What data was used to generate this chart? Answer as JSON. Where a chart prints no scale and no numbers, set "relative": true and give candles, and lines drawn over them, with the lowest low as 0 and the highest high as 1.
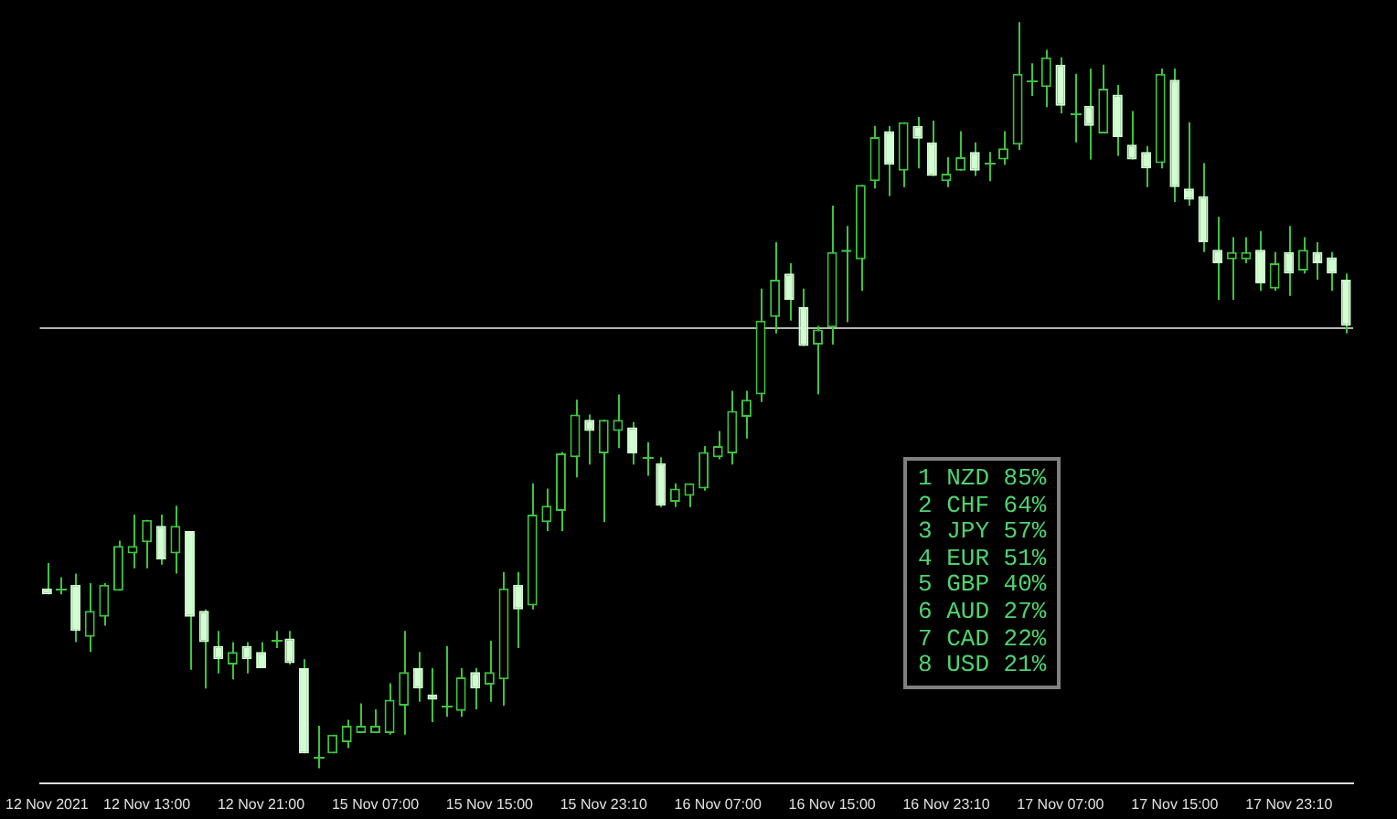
{
  "chart_data": {
    "type": "candlestick",
    "relative": true,
    "color": "#3ec43e",
    "grid": false,
    "colors": [
      "#d2ffd2",
      "#3ec43e",
      "#d2ffd2",
      "#3ec43e",
      "#3ec43e",
      "#3ec43e",
      "#3ec43e",
      "#3ec43e",
      "#d2ffd2",
      "#3ec43e",
      "#d2ffd2",
      "#d2ffd2",
      "#d2ffd2",
      "#3ec43e",
      "#d2ffd2",
      "#d2ffd2",
      "#3ec43e",
      "#d2ffd2",
      "#d2ffd2",
      "#3ec43e",
      "#3ec43e",
      "#3ec43e",
      "#3ec43e",
      "#3ec43e",
      "#3ec43e",
      "#3ec43e",
      "#d2ffd2",
      "#d2ffd2",
      "#3ec43e",
      "#3ec43e",
      "#d2ffd2",
      "#3ec43e",
      "#3ec43e",
      "#d2ffd2",
      "#3ec43e",
      "#3ec43e",
      "#3ec43e",
      "#3ec43e",
      "#d2ffd2",
      "#3ec43e",
      "#3ec43e",
      "#d2ffd2",
      "#3ec43e",
      "#d2ffd2",
      "#3ec43e",
      "#3ec43e",
      "#3ec43e",
      "#3ec43e",
      "#3ec43e",
      "#3ec43e",
      "#3ec43e",
      "#3ec43e",
      "#d2ffd2",
      "#d2ffd2",
      "#3ec43e",
      "#3ec43e",
      "#3ec43e",
      "#3ec43e",
      "#3ec43e",
      "#d2ffd2",
      "#3ec43e",
      "#d2ffd2",
      "#d2ffd2",
      "#3ec43e",
      "#3ec43e",
      "#d2ffd2",
      "#3ec43e",
      "#3ec43e",
      "#3ec43e",
      "#3ec43e",
      "#3ec43e",
      "#d2ffd2",
      "#3ec43e",
      "#d2ffd2",
      "#3ec43e",
      "#d2ffd2",
      "#d2ffd2",
      "#d2ffd2",
      "#3ec43e",
      "#d2ffd2",
      "#d2ffd2",
      "#d2ffd2",
      "#d2ffd2",
      "#3ec43e",
      "#3ec43e",
      "#d2ffd2",
      "#3ec43e",
      "#d2ffd2",
      "#3ec43e",
      "#d2ffd2",
      "#d2ffd2",
      "#d2ffd2"
    ],
    "legend": false,
    "categories": [
      "12 Nov 2021",
      null,
      null,
      null,
      null,
      null,
      null,
      "12 Nov 13:00",
      null,
      null,
      null,
      null,
      null,
      null,
      null,
      "12 Nov 21:00",
      null,
      null,
      null,
      null,
      null,
      null,
      null,
      "15 Nov 07:00",
      null,
      null,
      null,
      null,
      null,
      null,
      null,
      "15 Nov 15:00",
      null,
      null,
      null,
      null,
      null,
      null,
      null,
      "15 Nov 23:10",
      null,
      null,
      null,
      null,
      null,
      null,
      null,
      "16 Nov 07:00",
      null,
      null,
      null,
      null,
      null,
      null,
      null,
      "16 Nov 15:00",
      null,
      null,
      null,
      null,
      null,
      null,
      null,
      "16 Nov 23:10",
      null,
      null,
      null,
      null,
      null,
      null,
      null,
      "17 Nov 07:00",
      null,
      null,
      null,
      null,
      null,
      null,
      null,
      "17 Nov 15:00",
      null,
      null,
      null,
      null,
      null,
      null,
      null,
      "17 Nov 23:10",
      null,
      null,
      null,
      null
    ],
    "ohlc": [
      [
        0.241,
        0.275,
        0.233,
        0.233
      ],
      [
        0.241,
        0.256,
        0.233,
        0.241
      ],
      [
        0.246,
        0.261,
        0.169,
        0.184
      ],
      [
        0.176,
        0.248,
        0.156,
        0.211
      ],
      [
        0.203,
        0.248,
        0.191,
        0.246
      ],
      [
        0.238,
        0.305,
        0.238,
        0.298
      ],
      [
        0.288,
        0.34,
        0.268,
        0.298
      ],
      [
        0.303,
        0.333,
        0.268,
        0.333
      ],
      [
        0.325,
        0.34,
        0.273,
        0.28
      ],
      [
        0.288,
        0.352,
        0.261,
        0.325
      ],
      [
        0.318,
        0.318,
        0.132,
        0.203
      ],
      [
        0.211,
        0.213,
        0.107,
        0.169
      ],
      [
        0.164,
        0.184,
        0.127,
        0.146
      ],
      [
        0.139,
        0.169,
        0.119,
        0.156
      ],
      [
        0.164,
        0.169,
        0.127,
        0.146
      ],
      [
        0.156,
        0.169,
        0.134,
        0.134
      ],
      [
        0.171,
        0.184,
        0.161,
        0.171
      ],
      [
        0.174,
        0.184,
        0.139,
        0.141
      ],
      [
        0.134,
        0.146,
        0.02,
        0.02
      ],
      [
        0.015,
        0.057,
        0,
        0.015
      ],
      [
        0.02,
        0.045,
        0.02,
        0.045
      ],
      [
        0.035,
        0.065,
        0.027,
        0.057
      ],
      [
        0.047,
        0.087,
        0.047,
        0.057
      ],
      [
        0.047,
        0.079,
        0.047,
        0.057
      ],
      [
        0.047,
        0.114,
        0.045,
        0.092
      ],
      [
        0.084,
        0.184,
        0.045,
        0.129
      ],
      [
        0.134,
        0.156,
        0.089,
        0.107
      ],
      [
        0.099,
        0.134,
        0.062,
        0.092
      ],
      [
        0.084,
        0.164,
        0.069,
        0.084
      ],
      [
        0.077,
        0.134,
        0.069,
        0.122
      ],
      [
        0.129,
        0.134,
        0.079,
        0.107
      ],
      [
        0.112,
        0.171,
        0.089,
        0.129
      ],
      [
        0.119,
        0.263,
        0.084,
        0.241
      ],
      [
        0.246,
        0.263,
        0.161,
        0.213
      ],
      [
        0.218,
        0.382,
        0.213,
        0.34
      ],
      [
        0.33,
        0.375,
        0.318,
        0.352
      ],
      [
        0.345,
        0.424,
        0.318,
        0.422
      ],
      [
        0.417,
        0.494,
        0.39,
        0.474
      ],
      [
        0.467,
        0.474,
        0.407,
        0.452
      ],
      [
        0.422,
        0.467,
        0.33,
        0.467
      ],
      [
        0.452,
        0.501,
        0.429,
        0.467
      ],
      [
        0.457,
        0.464,
        0.407,
        0.422
      ],
      [
        0.417,
        0.437,
        0.392,
        0.417
      ],
      [
        0.409,
        0.417,
        0.35,
        0.352
      ],
      [
        0.357,
        0.382,
        0.35,
        0.375
      ],
      [
        0.365,
        0.382,
        0.35,
        0.382
      ],
      [
        0.375,
        0.432,
        0.372,
        0.424
      ],
      [
        0.417,
        0.452,
        0.414,
        0.432
      ],
      [
        0.422,
        0.506,
        0.407,
        0.479
      ],
      [
        0.471,
        0.506,
        0.442,
        0.494
      ],
      [
        0.501,
        0.643,
        0.491,
        0.6
      ],
      [
        0.605,
        0.705,
        0.583,
        0.655
      ],
      [
        0.663,
        0.677,
        0.6,
        0.628
      ],
      [
        0.618,
        0.643,
        0.566,
        0.566
      ],
      [
        0.568,
        0.593,
        0.501,
        0.588
      ],
      [
        0.591,
        0.754,
        0.568,
        0.692
      ],
      [
        0.692,
        0.727,
        0.598,
        0.695
      ],
      [
        0.682,
        0.782,
        0.64,
        0.782
      ],
      [
        0.787,
        0.861,
        0.777,
        0.846
      ],
      [
        0.854,
        0.861,
        0.767,
        0.809
      ],
      [
        0.801,
        0.866,
        0.779,
        0.866
      ],
      [
        0.861,
        0.873,
        0.804,
        0.844
      ],
      [
        0.839,
        0.868,
        0.794,
        0.794
      ],
      [
        0.787,
        0.819,
        0.779,
        0.797
      ],
      [
        0.801,
        0.854,
        0.801,
        0.819
      ],
      [
        0.826,
        0.839,
        0.794,
        0.801
      ],
      [
        0.811,
        0.826,
        0.787,
        0.811
      ],
      [
        0.816,
        0.854,
        0.809,
        0.831
      ],
      [
        0.836,
        1,
        0.829,
        0.931
      ],
      [
        0.923,
        0.945,
        0.901,
        0.923
      ],
      [
        0.913,
        0.963,
        0.886,
        0.953
      ],
      [
        0.943,
        0.953,
        0.878,
        0.888
      ],
      [
        0.878,
        0.931,
        0.839,
        0.878
      ],
      [
        0.888,
        0.938,
        0.816,
        0.861
      ],
      [
        0.851,
        0.943,
        0.851,
        0.911
      ],
      [
        0.903,
        0.916,
        0.821,
        0.846
      ],
      [
        0.836,
        0.881,
        0.816,
        0.816
      ],
      [
        0.826,
        0.834,
        0.779,
        0.804
      ],
      [
        0.811,
        0.938,
        0.804,
        0.931
      ],
      [
        0.923,
        0.938,
        0.759,
        0.779
      ],
      [
        0.777,
        0.866,
        0.754,
        0.762
      ],
      [
        0.767,
        0.811,
        0.692,
        0.705
      ],
      [
        0.695,
        0.739,
        0.628,
        0.677
      ],
      [
        0.682,
        0.712,
        0.628,
        0.692
      ],
      [
        0.682,
        0.712,
        0.677,
        0.692
      ],
      [
        0.695,
        0.72,
        0.64,
        0.65
      ],
      [
        0.643,
        0.692,
        0.64,
        0.677
      ],
      [
        0.692,
        0.727,
        0.633,
        0.663
      ],
      [
        0.667,
        0.712,
        0.663,
        0.695
      ],
      [
        0.692,
        0.705,
        0.655,
        0.677
      ],
      [
        0.685,
        0.692,
        0.64,
        0.663
      ],
      [
        0.655,
        0.663,
        0.583,
        0.593
      ]
    ],
    "ref_lines": [
      {
        "axis": "y",
        "value": 0.591,
        "color": "#b4b4b4"
      }
    ],
    "annotations": [
      "1 NZD 85%",
      "2 CHF 64%",
      "3 JPY 57%",
      "4 EUR 51%",
      "5 GBP 40%",
      "6 AUD 27%",
      "7 CAD 22%",
      "8 USD 21%"
    ]
  }
}
